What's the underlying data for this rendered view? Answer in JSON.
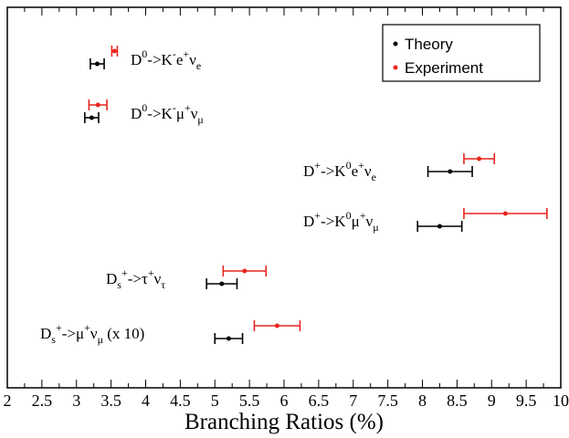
{
  "chart_data": {
    "type": "scatter",
    "title": "",
    "xlabel": "Branching Ratios (%)",
    "ylabel": "",
    "xlim": [
      2,
      10
    ],
    "x_ticks": [
      "2",
      "2.5",
      "3",
      "3.5",
      "4",
      "4.5",
      "5",
      "5.5",
      "6",
      "6.5",
      "7",
      "7.5",
      "8",
      "8.5",
      "9",
      "9.5",
      "10"
    ],
    "grid": false,
    "legend_position": "top-right",
    "colors": {
      "theory": "#000000",
      "experiment": "#e8251e"
    },
    "series": [
      {
        "name": "Theory",
        "key": "theory"
      },
      {
        "name": "Experiment",
        "key": "experiment"
      }
    ],
    "processes": [
      {
        "label_parts": [
          {
            "t": "D"
          },
          {
            "t": "0",
            "s": "sup"
          },
          {
            "t": "->K"
          },
          {
            "t": "-",
            "s": "sup"
          },
          {
            "t": "e"
          },
          {
            "t": "+",
            "s": "sup"
          },
          {
            "t": "ν"
          },
          {
            "t": "e",
            "s": "sub"
          }
        ],
        "theory": {
          "value": 3.3,
          "err_low": 0.1,
          "err_high": 0.1
        },
        "experiment": {
          "value": 3.55,
          "err_low": 0.04,
          "err_high": 0.04
        }
      },
      {
        "label_parts": [
          {
            "t": "D"
          },
          {
            "t": "0",
            "s": "sup"
          },
          {
            "t": "->K"
          },
          {
            "t": "-",
            "s": "sup"
          },
          {
            "t": "μ"
          },
          {
            "t": "+",
            "s": "sup"
          },
          {
            "t": "ν"
          },
          {
            "t": "μ",
            "s": "sub"
          }
        ],
        "theory": {
          "value": 3.22,
          "err_low": 0.1,
          "err_high": 0.1
        },
        "experiment": {
          "value": 3.31,
          "err_low": 0.13,
          "err_high": 0.13
        }
      },
      {
        "label_parts": [
          {
            "t": "D"
          },
          {
            "t": "+",
            "s": "sup"
          },
          {
            "t": "->K"
          },
          {
            "t": "0",
            "s": "sup"
          },
          {
            "t": "e"
          },
          {
            "t": "+",
            "s": "sup"
          },
          {
            "t": "ν"
          },
          {
            "t": "e",
            "s": "sub"
          }
        ],
        "theory": {
          "value": 8.4,
          "err_low": 0.32,
          "err_high": 0.32
        },
        "experiment": {
          "value": 8.82,
          "err_low": 0.22,
          "err_high": 0.22
        }
      },
      {
        "label_parts": [
          {
            "t": "D"
          },
          {
            "t": "+",
            "s": "sup"
          },
          {
            "t": "->K"
          },
          {
            "t": "0",
            "s": "sup"
          },
          {
            "t": "μ"
          },
          {
            "t": "+",
            "s": "sup"
          },
          {
            "t": "ν"
          },
          {
            "t": "μ",
            "s": "sub"
          }
        ],
        "theory": {
          "value": 8.25,
          "err_low": 0.32,
          "err_high": 0.32
        },
        "experiment": {
          "value": 9.2,
          "err_low": 0.6,
          "err_high": 0.6
        }
      },
      {
        "label_parts": [
          {
            "t": "D"
          },
          {
            "t": "s",
            "s": "sub"
          },
          {
            "t": "+",
            "s": "sup"
          },
          {
            "t": "->τ"
          },
          {
            "t": "+",
            "s": "sup"
          },
          {
            "t": "ν"
          },
          {
            "t": "τ",
            "s": "sub"
          }
        ],
        "theory": {
          "value": 5.1,
          "err_low": 0.22,
          "err_high": 0.22
        },
        "experiment": {
          "value": 5.43,
          "err_low": 0.31,
          "err_high": 0.31
        }
      },
      {
        "label_parts": [
          {
            "t": "D"
          },
          {
            "t": "s",
            "s": "sub"
          },
          {
            "t": "+",
            "s": "sup"
          },
          {
            "t": "->μ"
          },
          {
            "t": "+",
            "s": "sup"
          },
          {
            "t": "ν"
          },
          {
            "t": "μ",
            "s": "sub"
          },
          {
            "t": "  (x 10)"
          }
        ],
        "theory": {
          "value": 5.2,
          "err_low": 0.2,
          "err_high": 0.2
        },
        "experiment": {
          "value": 5.9,
          "err_low": 0.33,
          "err_high": 0.33
        }
      }
    ]
  }
}
